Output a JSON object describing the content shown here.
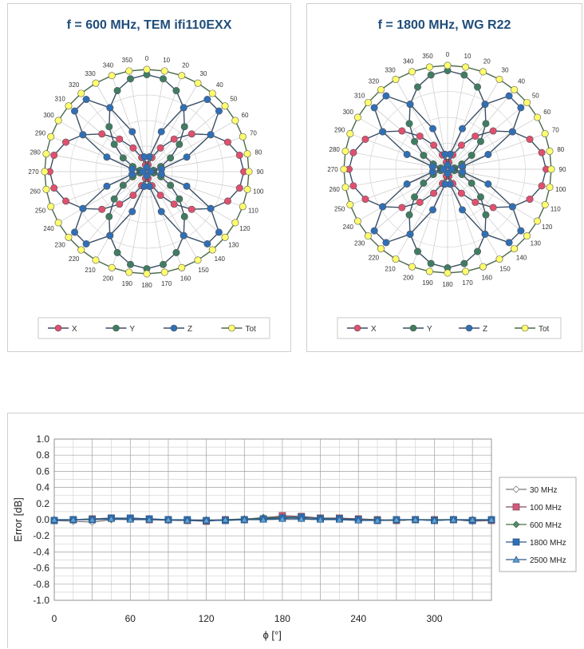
{
  "colors": {
    "X": "#e0506e",
    "Y": "#3f7d62",
    "Z": "#2f6fb7",
    "Tot": "#ffff6e",
    "title": "#1f4d7a"
  },
  "chart_data": [
    {
      "type": "polar",
      "title": "f = 600 MHz, TEM  ifi110EXX",
      "angles_deg": [
        0,
        10,
        20,
        30,
        40,
        50,
        60,
        70,
        80,
        90,
        100,
        110,
        120,
        130,
        140,
        150,
        160,
        170,
        180,
        190,
        200,
        210,
        220,
        230,
        240,
        250,
        260,
        270,
        280,
        290,
        300,
        310,
        320,
        330,
        340,
        350
      ],
      "angle_labels": [
        "0",
        "10",
        "20",
        "30",
        "40",
        "50",
        "60",
        "70",
        "80",
        "90",
        "100",
        "110",
        "120",
        "130",
        "140",
        "150",
        "160",
        "170",
        "180",
        "190",
        "200",
        "210",
        "220",
        "230",
        "240",
        "250",
        "260",
        "270",
        "280",
        "290",
        "300",
        "310",
        "320",
        "330",
        "340",
        "350"
      ],
      "series": [
        {
          "name": "X",
          "pattern": "sin2",
          "peak": 0.95,
          "floor": 0.04
        },
        {
          "name": "Y",
          "pattern": "cos2",
          "peak": 0.95,
          "floor": 0.04
        },
        {
          "name": "Z",
          "pattern": "sin2phi",
          "peak": 0.95,
          "floor": 0.04
        },
        {
          "name": "Tot",
          "pattern": "const",
          "peak": 1.0,
          "floor": 1.0
        }
      ],
      "legend": [
        "X",
        "Y",
        "Z",
        "Tot"
      ]
    },
    {
      "type": "polar",
      "title": "f = 1800 MHz, WG R22",
      "angles_deg": [
        0,
        10,
        20,
        30,
        40,
        50,
        60,
        70,
        80,
        90,
        100,
        110,
        120,
        130,
        140,
        150,
        160,
        170,
        180,
        190,
        200,
        210,
        220,
        230,
        240,
        250,
        260,
        270,
        280,
        290,
        300,
        310,
        320,
        330,
        340,
        350
      ],
      "angle_labels": [
        "0",
        "10",
        "20",
        "30",
        "40",
        "50",
        "60",
        "70",
        "80",
        "90",
        "100",
        "110",
        "120",
        "130",
        "140",
        "150",
        "160",
        "170",
        "180",
        "190",
        "200",
        "210",
        "220",
        "230",
        "240",
        "250",
        "260",
        "270",
        "280",
        "290",
        "300",
        "310",
        "320",
        "330",
        "340",
        "350"
      ],
      "series": [
        {
          "name": "X",
          "pattern": "sin2",
          "peak": 0.95,
          "floor": 0.04
        },
        {
          "name": "Y",
          "pattern": "cos2",
          "peak": 0.95,
          "floor": 0.04
        },
        {
          "name": "Z",
          "pattern": "sin2phi",
          "peak": 0.95,
          "floor": 0.04
        },
        {
          "name": "Tot",
          "pattern": "const",
          "peak": 1.0,
          "floor": 1.0
        }
      ],
      "legend": [
        "X",
        "Y",
        "Z",
        "Tot"
      ]
    },
    {
      "type": "line",
      "xlabel": "ϕ [°]",
      "ylabel": "Error [dB]",
      "xlim": [
        0,
        345
      ],
      "ylim": [
        -1.0,
        1.0
      ],
      "x_ticks": [
        0,
        60,
        120,
        180,
        240,
        300
      ],
      "y_ticks": [
        "1.0",
        "0.8",
        "0.6",
        "0.4",
        "0.2",
        "0.0",
        "-0.2",
        "-0.4",
        "-0.6",
        "-0.8",
        "-1.0"
      ],
      "grid": true,
      "legend_position": "right",
      "x": [
        0,
        15,
        30,
        45,
        60,
        75,
        90,
        105,
        120,
        135,
        150,
        165,
        180,
        195,
        210,
        225,
        240,
        255,
        270,
        285,
        300,
        315,
        330,
        345
      ],
      "series": [
        {
          "name": "30 MHz",
          "marker": "diamond-open",
          "values": [
            -0.01,
            -0.02,
            -0.03,
            0.0,
            0.01,
            0.0,
            -0.01,
            -0.01,
            0.0,
            -0.01,
            0.0,
            0.03,
            0.04,
            0.03,
            0.02,
            0.01,
            0.0,
            -0.01,
            -0.01,
            0.0,
            -0.01,
            0.0,
            -0.02,
            -0.01
          ]
        },
        {
          "name": "100 MHz",
          "marker": "square-pink",
          "values": [
            -0.01,
            0.0,
            0.01,
            0.02,
            0.01,
            0.0,
            0.0,
            -0.01,
            -0.02,
            0.0,
            0.0,
            0.01,
            0.05,
            0.04,
            0.02,
            0.02,
            0.01,
            0.0,
            -0.01,
            0.0,
            0.0,
            0.0,
            -0.01,
            -0.01
          ]
        },
        {
          "name": "600 MHz",
          "marker": "diamond-green",
          "values": [
            0.0,
            0.0,
            0.01,
            0.01,
            0.02,
            0.01,
            0.0,
            -0.01,
            -0.01,
            0.0,
            0.01,
            0.02,
            0.03,
            0.02,
            0.02,
            0.01,
            0.0,
            0.0,
            -0.01,
            0.0,
            0.0,
            0.0,
            0.0,
            0.0
          ]
        },
        {
          "name": "1800 MHz",
          "marker": "square-blue",
          "values": [
            -0.01,
            0.0,
            0.0,
            0.02,
            0.02,
            0.01,
            0.0,
            0.0,
            -0.01,
            -0.01,
            0.0,
            0.01,
            0.02,
            0.03,
            0.01,
            0.01,
            0.0,
            -0.01,
            0.0,
            0.0,
            -0.01,
            0.0,
            -0.01,
            0.0
          ]
        },
        {
          "name": "2500 MHz",
          "marker": "triangle-blue",
          "values": [
            0.0,
            0.0,
            0.0,
            0.01,
            0.0,
            0.0,
            0.0,
            -0.01,
            -0.01,
            0.0,
            0.0,
            0.0,
            0.01,
            0.01,
            0.0,
            0.0,
            -0.01,
            -0.01,
            0.0,
            0.0,
            -0.01,
            0.0,
            0.0,
            0.0
          ]
        }
      ]
    }
  ]
}
